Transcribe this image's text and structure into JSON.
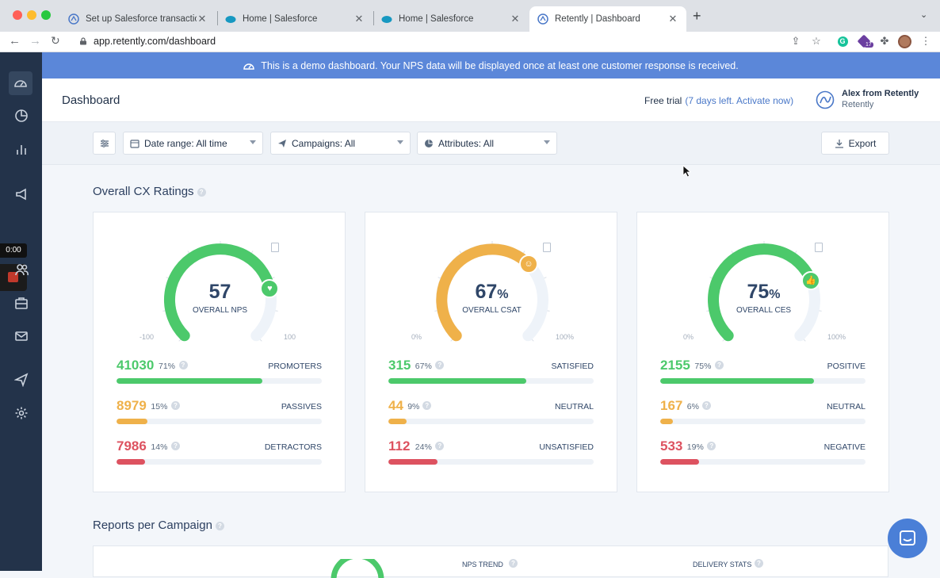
{
  "browser": {
    "tabs": [
      {
        "title": "Set up Salesforce transactiona",
        "icon": "retently-icon"
      },
      {
        "title": "Home | Salesforce",
        "icon": "salesforce-icon"
      },
      {
        "title": "Home | Salesforce",
        "icon": "salesforce-icon"
      },
      {
        "title": "Retently | Dashboard",
        "icon": "retently-icon",
        "active": true
      }
    ],
    "url": "app.retently.com/dashboard",
    "extension_badge": "17"
  },
  "recorder": {
    "time": "0:00"
  },
  "banner": {
    "text": "This is a demo dashboard. Your NPS data will be displayed once at least one customer response is received."
  },
  "header": {
    "title": "Dashboard",
    "trial_label": "Free trial",
    "trial_detail": "(7 days left. Activate now)",
    "user_name": "Alex from Retently",
    "user_org": "Retently"
  },
  "filters": {
    "date_range": "Date range: All time",
    "campaigns": "Campaigns: All",
    "attributes": "Attributes: All",
    "export": "Export"
  },
  "sections": {
    "overall": "Overall CX Ratings",
    "reports": "Reports per Campaign"
  },
  "cards": [
    {
      "score": "57",
      "suffix": "",
      "label": "OVERALL NPS",
      "min": "-100",
      "max": "100",
      "gauge_fraction": 0.785,
      "color": "#4cc96b",
      "badge_icon": "heart-icon",
      "rows": [
        {
          "count": "41030",
          "pct": "71%",
          "label": "PROMOTERS",
          "fill": 0.71,
          "color": "#4cc96b"
        },
        {
          "count": "8979",
          "pct": "15%",
          "label": "PASSIVES",
          "fill": 0.15,
          "color": "#efb14a"
        },
        {
          "count": "7986",
          "pct": "14%",
          "label": "DETRACTORS",
          "fill": 0.14,
          "color": "#dd5260"
        }
      ]
    },
    {
      "score": "67",
      "suffix": "%",
      "label": "OVERALL CSAT",
      "min": "0%",
      "max": "100%",
      "gauge_fraction": 0.67,
      "color": "#efb14a",
      "badge_icon": "smiley-icon",
      "rows": [
        {
          "count": "315",
          "pct": "67%",
          "label": "SATISFIED",
          "fill": 0.67,
          "color": "#4cc96b"
        },
        {
          "count": "44",
          "pct": "9%",
          "label": "NEUTRAL",
          "fill": 0.09,
          "color": "#efb14a"
        },
        {
          "count": "112",
          "pct": "24%",
          "label": "UNSATISFIED",
          "fill": 0.24,
          "color": "#dd5260"
        }
      ]
    },
    {
      "score": "75",
      "suffix": "%",
      "label": "OVERALL CES",
      "min": "0%",
      "max": "100%",
      "gauge_fraction": 0.75,
      "color": "#4cc96b",
      "badge_icon": "thumbs-up-icon",
      "rows": [
        {
          "count": "2155",
          "pct": "75%",
          "label": "POSITIVE",
          "fill": 0.75,
          "color": "#4cc96b"
        },
        {
          "count": "167",
          "pct": "6%",
          "label": "NEUTRAL",
          "fill": 0.06,
          "color": "#efb14a"
        },
        {
          "count": "533",
          "pct": "19%",
          "label": "NEGATIVE",
          "fill": 0.19,
          "color": "#dd5260"
        }
      ]
    }
  ],
  "reports": {
    "nps_trend": "NPS TREND",
    "delivery_stats": "DELIVERY STATS"
  }
}
